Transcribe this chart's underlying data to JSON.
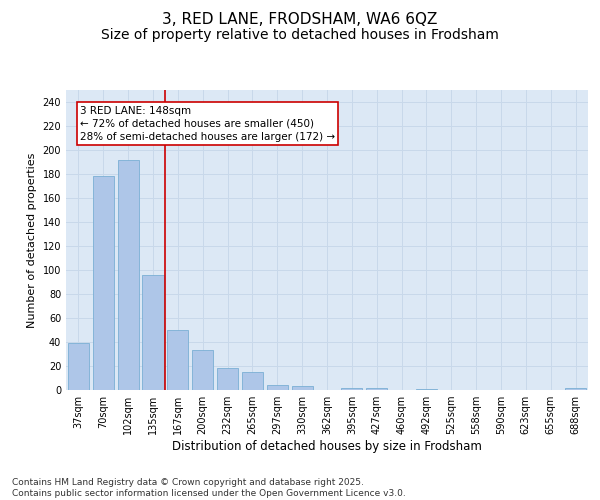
{
  "title": "3, RED LANE, FRODSHAM, WA6 6QZ",
  "subtitle": "Size of property relative to detached houses in Frodsham",
  "xlabel": "Distribution of detached houses by size in Frodsham",
  "ylabel": "Number of detached properties",
  "categories": [
    "37sqm",
    "70sqm",
    "102sqm",
    "135sqm",
    "167sqm",
    "200sqm",
    "232sqm",
    "265sqm",
    "297sqm",
    "330sqm",
    "362sqm",
    "395sqm",
    "427sqm",
    "460sqm",
    "492sqm",
    "525sqm",
    "558sqm",
    "590sqm",
    "623sqm",
    "655sqm",
    "688sqm"
  ],
  "values": [
    39,
    178,
    192,
    96,
    50,
    33,
    18,
    15,
    4,
    3,
    0,
    2,
    2,
    0,
    1,
    0,
    0,
    0,
    0,
    0,
    2
  ],
  "bar_color": "#aec6e8",
  "bar_edge_color": "#7aafd4",
  "grid_color": "#c8d8ea",
  "annotation_text": "3 RED LANE: 148sqm\n← 72% of detached houses are smaller (450)\n28% of semi-detached houses are larger (172) →",
  "vline_x": 3.5,
  "vline_color": "#cc0000",
  "ylim": [
    0,
    250
  ],
  "yticks": [
    0,
    20,
    40,
    60,
    80,
    100,
    120,
    140,
    160,
    180,
    200,
    220,
    240
  ],
  "footer": "Contains HM Land Registry data © Crown copyright and database right 2025.\nContains public sector information licensed under the Open Government Licence v3.0.",
  "bg_color": "#dce8f5",
  "title_fontsize": 11,
  "subtitle_fontsize": 10,
  "xlabel_fontsize": 8.5,
  "ylabel_fontsize": 8,
  "tick_fontsize": 7,
  "annotation_fontsize": 7.5,
  "footer_fontsize": 6.5
}
